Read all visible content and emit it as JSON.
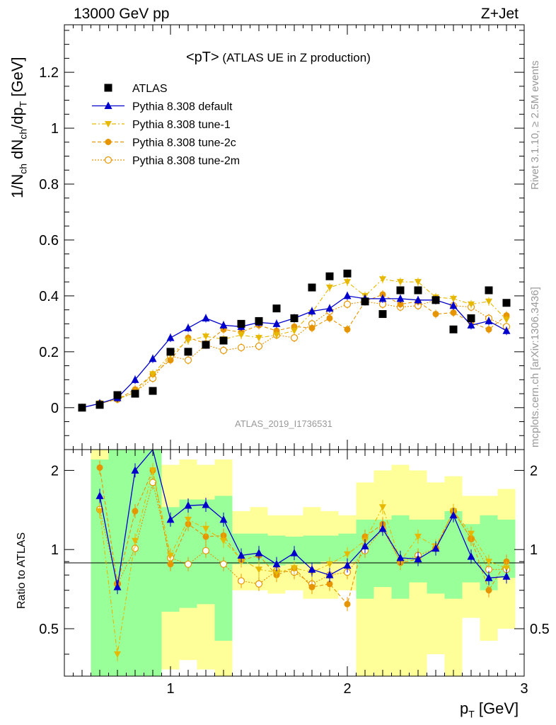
{
  "header": {
    "left": "13000 GeV pp",
    "right": "Z+Jet"
  },
  "plot_title": "<pT> (ATLAS UE in Z production)",
  "plot_title_prefix": "<pT>",
  "plot_title_suffix": " (ATLAS UE in Z production)",
  "ylabel_main": "1/N_ch dN_ch/dp_T [GeV]",
  "ylabel_ratio": "Ratio to ATLAS",
  "xlabel": "p_T [GeV]",
  "watermark": "ATLAS_2019_I1736531",
  "side_text_top": "Rivet 3.1.10, ≥ 2.5M events",
  "side_text_bottom": "mcplots.cern.ch [arXiv:1306.3436]",
  "colors": {
    "data": "#000000",
    "default": "#0000cc",
    "tune1": "#e6b800",
    "tune2c": "#e69500",
    "tune2m": "#e69500",
    "band_green": "#99ff99",
    "band_yellow": "#ffff99"
  },
  "chart_data": [
    {
      "type": "line",
      "panel": "main",
      "xlim": [
        0.4,
        3.0
      ],
      "ylim": [
        -0.15,
        1.37
      ],
      "yticks": [
        0,
        0.2,
        0.4,
        0.6,
        0.8,
        1,
        1.2
      ],
      "ytick_labels": [
        "0",
        "0.2",
        "0.4",
        "0.6",
        "0.8",
        "1",
        "1.2"
      ],
      "x": [
        0.5,
        0.6,
        0.7,
        0.8,
        0.9,
        1.0,
        1.1,
        1.2,
        1.3,
        1.4,
        1.5,
        1.6,
        1.7,
        1.8,
        1.9,
        2.0,
        2.1,
        2.2,
        2.3,
        2.4,
        2.5,
        2.6,
        2.7,
        2.8,
        2.9
      ],
      "series": [
        {
          "name": "ATLAS",
          "key": "data",
          "values": [
            0.0,
            0.01,
            0.045,
            0.05,
            0.06,
            0.2,
            0.2,
            0.225,
            0.24,
            0.3,
            0.31,
            0.355,
            0.32,
            0.43,
            0.47,
            0.48,
            0.38,
            0.335,
            0.42,
            0.42,
            0.385,
            0.28,
            0.32,
            0.42,
            0.375
          ]
        },
        {
          "name": "Pythia 8.308 default",
          "key": "default",
          "values": [
            0.0,
            0.015,
            0.035,
            0.1,
            0.175,
            0.25,
            0.285,
            0.32,
            0.295,
            0.29,
            0.305,
            0.3,
            0.32,
            0.345,
            0.355,
            0.4,
            0.39,
            0.39,
            0.39,
            0.385,
            0.385,
            0.365,
            0.295,
            0.31,
            0.275
          ]
        },
        {
          "name": "Pythia 8.308 tune-1",
          "key": "tune1",
          "values": [
            0.0,
            0.015,
            0.03,
            0.055,
            0.12,
            0.19,
            0.24,
            0.255,
            0.245,
            0.26,
            0.25,
            0.26,
            0.275,
            0.34,
            0.43,
            0.45,
            0.4,
            0.46,
            0.45,
            0.45,
            0.395,
            0.39,
            0.37,
            0.38,
            0.315
          ]
        },
        {
          "name": "Pythia 8.308 tune-2c",
          "key": "tune2c",
          "values": [
            0.0,
            0.015,
            0.03,
            0.065,
            0.12,
            0.17,
            0.25,
            0.23,
            0.28,
            0.27,
            0.295,
            0.275,
            0.29,
            0.285,
            0.32,
            0.28,
            0.38,
            0.405,
            0.37,
            0.38,
            0.335,
            0.34,
            0.305,
            0.28,
            0.33
          ]
        },
        {
          "name": "Pythia 8.308 tune-2m",
          "key": "tune2m",
          "values": [
            0.0,
            0.015,
            0.03,
            0.055,
            0.105,
            0.185,
            0.17,
            0.225,
            0.205,
            0.215,
            0.22,
            0.26,
            0.25,
            0.3,
            0.345,
            0.37,
            0.38,
            0.37,
            0.36,
            0.365,
            0.385,
            0.365,
            0.36,
            0.32,
            0.29
          ]
        }
      ]
    },
    {
      "type": "line",
      "panel": "ratio",
      "xlim": [
        0.4,
        3.0
      ],
      "ylim": [
        0.33,
        2.4
      ],
      "log_y": true,
      "yticks": [
        0.5,
        1,
        2
      ],
      "ytick_labels": [
        "0.5",
        "1",
        "2"
      ],
      "xticks": [
        1,
        2,
        3
      ],
      "xtick_labels": [
        "1",
        "2",
        "3"
      ],
      "x": [
        0.6,
        0.7,
        0.8,
        0.9,
        1.0,
        1.1,
        1.2,
        1.3,
        1.4,
        1.5,
        1.6,
        1.7,
        1.8,
        1.9,
        2.0,
        2.1,
        2.2,
        2.3,
        2.4,
        2.5,
        2.6,
        2.7,
        2.8,
        2.9
      ],
      "band_x_edges": [
        0.55,
        0.65,
        0.75,
        0.85,
        0.95,
        1.05,
        1.15,
        1.25,
        1.35,
        1.45,
        1.55,
        1.65,
        1.75,
        1.85,
        1.95,
        2.05,
        2.15,
        2.25,
        2.35,
        2.45,
        2.55,
        2.65,
        2.75,
        2.85,
        2.95
      ],
      "band_green": [
        [
          0.33,
          2.2
        ],
        [
          0.33,
          2.4
        ],
        [
          0.33,
          2.4
        ],
        [
          0.33,
          2.4
        ],
        [
          0.58,
          1.45
        ],
        [
          0.6,
          1.55
        ],
        [
          0.62,
          1.55
        ],
        [
          0.45,
          1.6
        ],
        [
          0.88,
          1.15
        ],
        [
          0.88,
          1.15
        ],
        [
          0.87,
          1.13
        ],
        [
          0.88,
          1.12
        ],
        [
          0.88,
          1.13
        ],
        [
          0.9,
          1.13
        ],
        [
          0.9,
          1.15
        ],
        [
          0.65,
          1.3
        ],
        [
          0.72,
          1.3
        ],
        [
          0.65,
          1.35
        ],
        [
          0.75,
          1.3
        ],
        [
          0.68,
          1.3
        ],
        [
          0.65,
          1.4
        ],
        [
          0.75,
          1.25
        ],
        [
          0.7,
          1.35
        ],
        [
          0.78,
          1.3
        ]
      ],
      "band_yellow": [
        [
          0.33,
          2.4
        ],
        [
          0.33,
          2.4
        ],
        [
          0.33,
          2.4
        ],
        [
          0.33,
          2.4
        ],
        [
          0.35,
          2.1
        ],
        [
          0.38,
          2.2
        ],
        [
          0.35,
          2.1
        ],
        [
          0.33,
          2.2
        ],
        [
          0.7,
          1.4
        ],
        [
          0.7,
          1.45
        ],
        [
          0.68,
          1.35
        ],
        [
          0.7,
          1.35
        ],
        [
          0.65,
          1.45
        ],
        [
          0.65,
          1.4
        ],
        [
          0.7,
          1.35
        ],
        [
          0.33,
          1.8
        ],
        [
          0.33,
          2.0
        ],
        [
          0.33,
          2.1
        ],
        [
          0.33,
          2.0
        ],
        [
          0.4,
          1.8
        ],
        [
          0.33,
          1.9
        ],
        [
          0.55,
          1.6
        ],
        [
          0.45,
          1.6
        ],
        [
          0.5,
          1.7
        ]
      ],
      "series": [
        {
          "name": "Pythia 8.308 default",
          "key": "default",
          "values": [
            1.6,
            0.72,
            2.0,
            2.9,
            1.3,
            1.47,
            1.48,
            1.3,
            0.95,
            0.97,
            0.88,
            0.97,
            0.84,
            0.8,
            0.87,
            1.03,
            1.2,
            0.93,
            0.92,
            1.01,
            1.35,
            0.94,
            0.78,
            0.79
          ]
        },
        {
          "name": "Pythia 8.308 tune-1",
          "key": "tune1",
          "values": [
            1.4,
            0.4,
            1.08,
            2.0,
            0.95,
            1.3,
            1.2,
            1.08,
            0.92,
            0.84,
            0.82,
            0.85,
            0.82,
            0.88,
            0.96,
            1.08,
            1.45,
            0.9,
            1.12,
            1.03,
            1.4,
            1.15,
            0.9,
            0.85
          ]
        },
        {
          "name": "Pythia 8.308 tune-2c",
          "key": "tune2c",
          "values": [
            2.05,
            0.74,
            1.4,
            2.0,
            0.88,
            1.25,
            1.12,
            1.13,
            0.91,
            0.95,
            0.8,
            0.85,
            0.72,
            0.74,
            0.62,
            1.12,
            1.25,
            0.89,
            0.92,
            1.01,
            1.4,
            1.1,
            0.7,
            0.9
          ]
        },
        {
          "name": "Pythia 8.308 tune-2m",
          "key": "tune2m",
          "values": [
            1.42,
            0.74,
            1.01,
            1.8,
            0.93,
            0.88,
            0.99,
            0.88,
            0.76,
            0.74,
            0.83,
            0.82,
            0.74,
            0.8,
            0.82,
            0.99,
            1.2,
            0.9,
            0.95,
            1.01,
            1.4,
            1.1,
            0.84,
            0.84
          ]
        }
      ]
    }
  ]
}
